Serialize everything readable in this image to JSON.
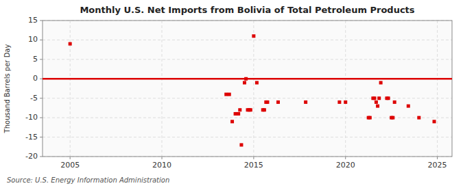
{
  "chart_data": {
    "type": "scatter",
    "title": "Monthly U.S. Net Imports from Bolivia of Total Petroleum Products",
    "ylabel": "Thousand Barrels per Day",
    "annotations": [
      "Source: U.S. Energy Information Administration"
    ],
    "x": [
      2005.0,
      2013.5,
      2013.67,
      2013.83,
      2014.0,
      2014.08,
      2014.17,
      2014.25,
      2014.33,
      2014.5,
      2014.58,
      2014.67,
      2014.75,
      2014.83,
      2015.0,
      2015.17,
      2015.5,
      2015.58,
      2015.67,
      2015.75,
      2016.33,
      2017.83,
      2019.67,
      2020.0,
      2021.25,
      2021.33,
      2021.5,
      2021.58,
      2021.67,
      2021.75,
      2021.83,
      2021.92,
      2022.25,
      2022.33,
      2022.5,
      2022.58,
      2022.67,
      2023.42,
      2024.0,
      2024.83
    ],
    "values": [
      9,
      -4,
      -4,
      -11,
      -9,
      -9,
      -9,
      -8,
      -17,
      -1,
      0,
      -8,
      -8,
      -8,
      11,
      -1,
      -8,
      -8,
      -6,
      -6,
      -6,
      -6,
      -6,
      -6,
      -10,
      -10,
      -5,
      -5,
      -6,
      -7,
      -5,
      -1,
      -5,
      -5,
      -10,
      -10,
      -6,
      -7,
      -10,
      -11
    ],
    "color": "#dd0000",
    "marker": "square",
    "xlim": [
      2003.5,
      2025.8
    ],
    "xticks": [
      2005,
      2010,
      2015,
      2020,
      2025
    ],
    "ylim": [
      -20,
      15
    ],
    "yticks": [
      -20,
      -15,
      -10,
      -5,
      0,
      5,
      10,
      15
    ],
    "grid": true
  }
}
